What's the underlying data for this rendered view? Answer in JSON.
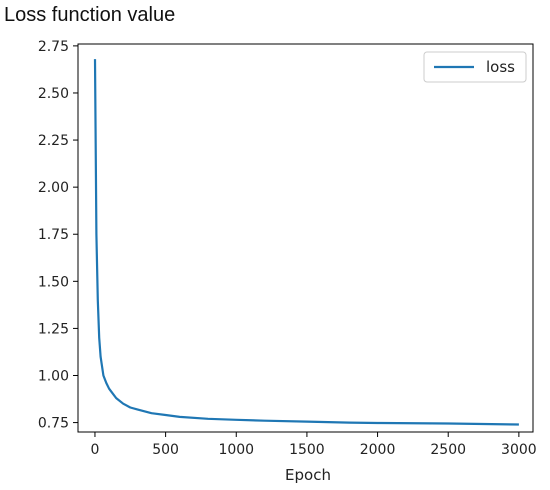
{
  "title": "Loss function value",
  "chart_data": {
    "type": "line",
    "title": "Loss function value",
    "xlabel": "Epoch",
    "ylabel": "",
    "xlim": [
      -120,
      3100
    ],
    "ylim": [
      0.7,
      2.76
    ],
    "xticks": [
      0,
      500,
      1000,
      1500,
      2000,
      2500,
      3000
    ],
    "yticks": [
      0.75,
      1.0,
      1.25,
      1.5,
      1.75,
      2.0,
      2.25,
      2.5,
      2.75
    ],
    "legend": {
      "position": "top-right"
    },
    "grid": false,
    "series": [
      {
        "name": "loss",
        "color": "#1f77b4",
        "x": [
          0,
          10,
          20,
          30,
          40,
          50,
          60,
          80,
          100,
          120,
          150,
          200,
          250,
          300,
          400,
          500,
          600,
          800,
          1000,
          1200,
          1500,
          1800,
          2000,
          2500,
          3000
        ],
        "values": [
          2.68,
          1.75,
          1.4,
          1.2,
          1.1,
          1.05,
          1.0,
          0.96,
          0.93,
          0.91,
          0.88,
          0.85,
          0.83,
          0.82,
          0.8,
          0.79,
          0.78,
          0.77,
          0.765,
          0.76,
          0.755,
          0.75,
          0.748,
          0.745,
          0.74
        ]
      }
    ]
  }
}
